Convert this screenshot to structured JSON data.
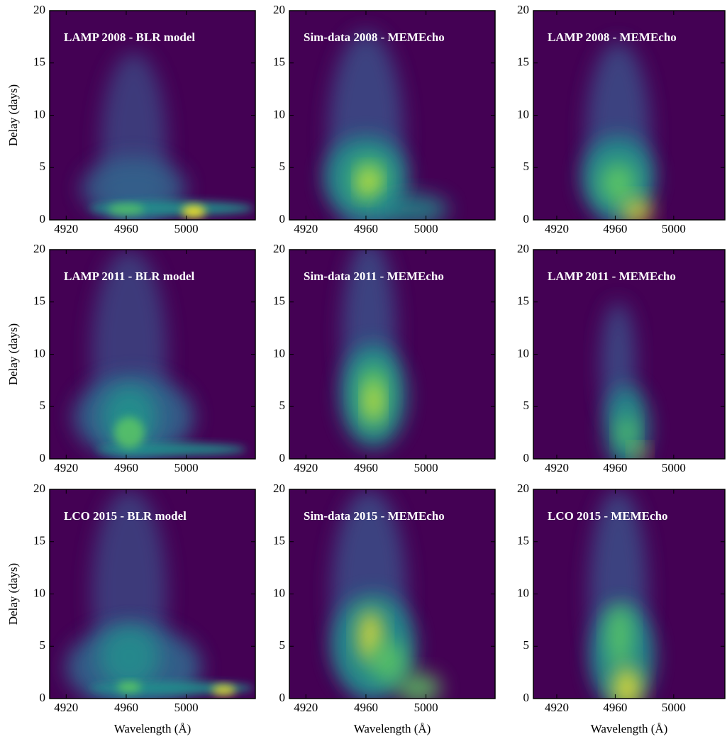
{
  "chart_data": [
    {
      "type": "heatmap",
      "title": "LAMP 2008 - BLR model",
      "ylabel": "Delay (days)",
      "xlim": [
        4909,
        5046
      ],
      "ylim": [
        0,
        20
      ],
      "xticks": [
        4920,
        4960,
        5000
      ],
      "yticks": [
        0,
        5,
        10,
        15,
        20
      ]
    },
    {
      "type": "heatmap",
      "title": "Sim-data 2008 - MEMEcho",
      "xlim": [
        4909,
        5046
      ],
      "ylim": [
        0,
        20
      ],
      "xticks": [
        4920,
        4960,
        5000
      ],
      "yticks": [
        0,
        5,
        10,
        15,
        20
      ]
    },
    {
      "type": "heatmap",
      "title": "LAMP 2008 - MEMEcho",
      "xlim": [
        4904,
        5035
      ],
      "ylim": [
        0,
        20
      ],
      "xticks": [
        4920,
        4960,
        5000
      ],
      "yticks": [
        0,
        5,
        10,
        15,
        20
      ]
    },
    {
      "type": "heatmap",
      "title": "LAMP 2011 - BLR model",
      "ylabel": "Delay (days)",
      "xlim": [
        4909,
        5046
      ],
      "ylim": [
        0,
        20
      ],
      "xticks": [
        4920,
        4960,
        5000
      ],
      "yticks": [
        0,
        5,
        10,
        15,
        20
      ]
    },
    {
      "type": "heatmap",
      "title": "Sim-data 2011 - MEMEcho",
      "xlim": [
        4909,
        5046
      ],
      "ylim": [
        0,
        20
      ],
      "xticks": [
        4920,
        4960,
        5000
      ],
      "yticks": [
        0,
        5,
        10,
        15,
        20
      ]
    },
    {
      "type": "heatmap",
      "title": "LAMP 2011 - MEMEcho",
      "xlim": [
        4904,
        5035
      ],
      "ylim": [
        0,
        20
      ],
      "xticks": [
        4920,
        4960,
        5000
      ],
      "yticks": [
        0,
        5,
        10,
        15,
        20
      ]
    },
    {
      "type": "heatmap",
      "title": "LCO 2015 - BLR model",
      "ylabel": "Delay (days)",
      "xlabel": "Wavelength (Å)",
      "xlim": [
        4909,
        5046
      ],
      "ylim": [
        0,
        20
      ],
      "xticks": [
        4920,
        4960,
        5000
      ],
      "yticks": [
        0,
        5,
        10,
        15,
        20
      ]
    },
    {
      "type": "heatmap",
      "title": "Sim-data 2015 - MEMEcho",
      "xlabel": "Wavelength (Å)",
      "xlim": [
        4909,
        5046
      ],
      "ylim": [
        0,
        20
      ],
      "xticks": [
        4920,
        4960,
        5000
      ],
      "yticks": [
        0,
        5,
        10,
        15,
        20
      ]
    },
    {
      "type": "heatmap",
      "title": "LCO 2015 - MEMEcho",
      "xlabel": "Wavelength (Å)",
      "xlim": [
        4904,
        5035
      ],
      "ylim": [
        0,
        20
      ],
      "xticks": [
        4920,
        4960,
        5000
      ],
      "yticks": [
        0,
        5,
        10,
        15,
        20
      ]
    }
  ]
}
